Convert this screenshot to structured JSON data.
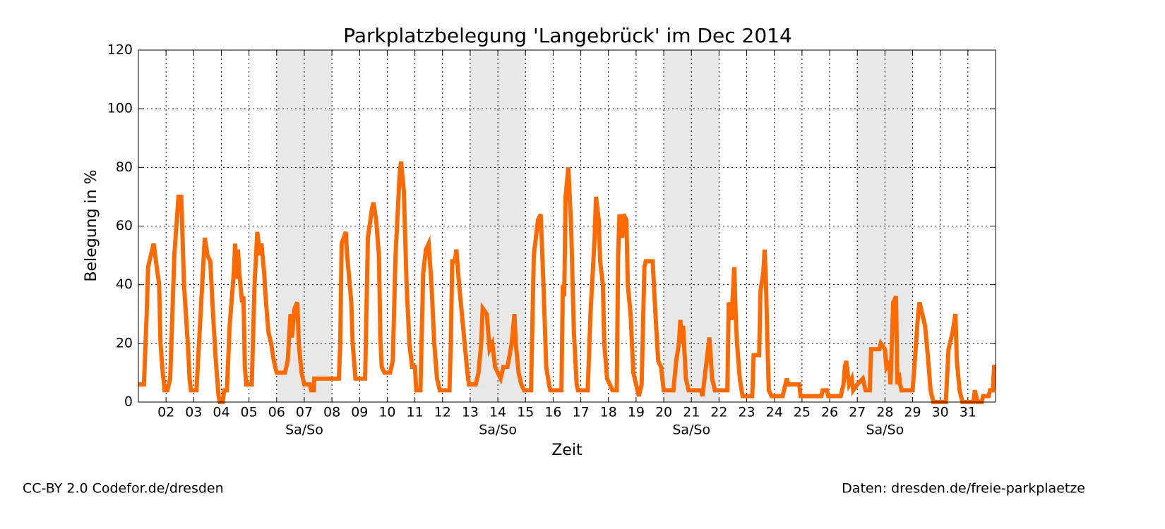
{
  "chart_data": {
    "type": "line",
    "title": "Parkplatzbelegung 'Langebrück' im Dec 2014",
    "xlabel": "Zeit",
    "ylabel": "Belegung in %",
    "footer_left": "CC-BY 2.0 Codefor.de/dresden",
    "footer_right": "Daten: dresden.de/freie-parkplaetze",
    "xlim": [
      1,
      32
    ],
    "ylim": [
      0,
      120
    ],
    "xticks": [
      {
        "value": 2,
        "label": "02"
      },
      {
        "value": 3,
        "label": "03"
      },
      {
        "value": 4,
        "label": "04"
      },
      {
        "value": 5,
        "label": "05"
      },
      {
        "value": 6,
        "label": "06"
      },
      {
        "value": 7,
        "label": "07"
      },
      {
        "value": 8,
        "label": "08"
      },
      {
        "value": 9,
        "label": "09"
      },
      {
        "value": 10,
        "label": "10"
      },
      {
        "value": 11,
        "label": "11"
      },
      {
        "value": 12,
        "label": "12"
      },
      {
        "value": 13,
        "label": "13"
      },
      {
        "value": 14,
        "label": "14"
      },
      {
        "value": 15,
        "label": "15"
      },
      {
        "value": 16,
        "label": "16"
      },
      {
        "value": 17,
        "label": "17"
      },
      {
        "value": 18,
        "label": "18"
      },
      {
        "value": 19,
        "label": "19"
      },
      {
        "value": 20,
        "label": "20"
      },
      {
        "value": 21,
        "label": "21"
      },
      {
        "value": 22,
        "label": "22"
      },
      {
        "value": 23,
        "label": "23"
      },
      {
        "value": 24,
        "label": "24"
      },
      {
        "value": 25,
        "label": "25"
      },
      {
        "value": 26,
        "label": "26"
      },
      {
        "value": 27,
        "label": "27"
      },
      {
        "value": 28,
        "label": "28"
      },
      {
        "value": 29,
        "label": "29"
      },
      {
        "value": 30,
        "label": "30"
      },
      {
        "value": 31,
        "label": "31"
      }
    ],
    "yticks": [
      0,
      20,
      40,
      60,
      80,
      100,
      120
    ],
    "grid": true,
    "weekends": [
      [
        6,
        8
      ],
      [
        13,
        15
      ],
      [
        20,
        22
      ],
      [
        27,
        29
      ]
    ],
    "weekend_label": "Sa/So",
    "weekend_color": "#e8e8e8",
    "x": [
      1.0,
      1.2,
      1.3,
      1.35,
      1.55,
      1.75,
      1.8,
      1.88,
      1.95,
      2.05,
      2.15,
      2.3,
      2.45,
      2.55,
      2.65,
      2.8,
      2.85,
      2.9,
      3.1,
      3.25,
      3.4,
      3.5,
      3.6,
      3.7,
      3.8,
      3.9,
      3.95,
      4.05,
      4.1,
      4.2,
      4.3,
      4.45,
      4.5,
      4.55,
      4.6,
      4.65,
      4.75,
      4.8,
      4.85,
      4.9,
      5.1,
      5.2,
      5.3,
      5.4,
      5.45,
      5.55,
      5.6,
      5.7,
      5.8,
      5.9,
      6.0,
      6.3,
      6.4,
      6.5,
      6.55,
      6.65,
      6.75,
      6.8,
      6.9,
      7.0,
      7.2,
      7.25,
      7.35,
      7.36,
      8.25,
      8.3,
      8.35,
      8.5,
      8.55,
      8.7,
      8.75,
      8.85,
      9.2,
      9.3,
      9.45,
      9.5,
      9.6,
      9.7,
      9.75,
      9.8,
      9.9,
      10.1,
      10.2,
      10.3,
      10.45,
      10.5,
      10.6,
      10.7,
      10.8,
      10.9,
      11.0,
      11.05,
      11.2,
      11.3,
      11.4,
      11.5,
      11.6,
      11.7,
      11.8,
      11.9,
      12.25,
      12.3,
      12.35,
      12.45,
      12.5,
      12.6,
      12.7,
      12.8,
      12.9,
      12.95,
      13.2,
      13.3,
      13.4,
      13.45,
      13.6,
      13.7,
      13.8,
      13.9,
      14.1,
      14.2,
      14.35,
      14.5,
      14.6,
      14.65,
      14.75,
      14.85,
      14.95,
      15.2,
      15.3,
      15.45,
      15.55,
      15.65,
      15.75,
      15.85,
      15.9,
      16.3,
      16.35,
      16.4,
      16.45,
      16.55,
      16.65,
      16.75,
      16.85,
      16.9,
      17.25,
      17.35,
      17.5,
      17.55,
      17.65,
      17.7,
      17.8,
      17.85,
      17.95,
      18.15,
      18.3,
      18.35,
      18.4,
      18.5,
      18.55,
      18.65,
      18.7,
      18.8,
      18.85,
      18.9,
      19.0,
      19.1,
      19.2,
      19.3,
      19.35,
      19.6,
      19.7,
      19.8,
      19.9,
      20.0,
      20.35,
      20.45,
      20.55,
      20.6,
      20.65,
      20.7,
      20.8,
      20.9,
      21.35,
      21.4,
      21.45,
      21.55,
      21.65,
      21.75,
      21.85,
      22.3,
      22.35,
      22.45,
      22.55,
      22.6,
      22.65,
      22.75,
      22.85,
      23.2,
      23.25,
      23.45,
      23.5,
      23.6,
      23.65,
      23.7,
      23.75,
      23.8,
      23.9,
      24.3,
      24.45,
      24.5,
      24.9,
      24.95,
      25.7,
      25.75,
      25.9,
      25.95,
      26.4,
      26.5,
      26.55,
      26.6,
      26.7,
      26.8,
      26.85,
      27.0,
      27.2,
      27.3,
      27.45,
      27.5,
      27.8,
      27.85,
      28.0,
      28.05,
      28.15,
      28.2,
      28.3,
      28.4,
      28.45,
      28.5,
      28.55,
      28.6,
      29.0,
      29.05,
      29.2,
      29.25,
      29.35,
      29.45,
      29.55,
      29.65,
      29.75,
      30.2,
      30.3,
      30.4,
      30.45,
      30.55,
      30.6,
      30.7,
      30.8,
      31.2,
      31.25,
      31.35,
      31.5,
      31.55,
      31.75,
      31.8,
      31.9,
      31.95,
      32.0
    ],
    "series": [
      {
        "color": "#ff6a00",
        "values": [
          6,
          6,
          30,
          46,
          54,
          40,
          20,
          10,
          4,
          4,
          8,
          50,
          70,
          70,
          40,
          18,
          8,
          4,
          4,
          30,
          56,
          50,
          48,
          30,
          14,
          2,
          0,
          0,
          4,
          4,
          26,
          44,
          54,
          42,
          52,
          44,
          34,
          36,
          12,
          6,
          6,
          40,
          58,
          50,
          54,
          44,
          36,
          24,
          20,
          14,
          10,
          10,
          14,
          30,
          22,
          32,
          34,
          20,
          10,
          6,
          6,
          4,
          4,
          8,
          8,
          20,
          54,
          58,
          50,
          34,
          20,
          8,
          8,
          56,
          66,
          68,
          62,
          50,
          22,
          12,
          10,
          10,
          14,
          50,
          78,
          82,
          72,
          40,
          20,
          12,
          12,
          4,
          4,
          44,
          52,
          54,
          40,
          20,
          8,
          4,
          4,
          20,
          48,
          48,
          52,
          40,
          30,
          20,
          10,
          6,
          6,
          10,
          20,
          32,
          30,
          18,
          20,
          12,
          8,
          12,
          12,
          20,
          30,
          20,
          10,
          6,
          4,
          4,
          50,
          62,
          64,
          40,
          12,
          6,
          4,
          4,
          40,
          36,
          70,
          80,
          60,
          24,
          6,
          4,
          4,
          30,
          56,
          70,
          62,
          48,
          40,
          20,
          8,
          4,
          4,
          50,
          64,
          56,
          64,
          62,
          40,
          30,
          20,
          10,
          6,
          2,
          6,
          46,
          48,
          48,
          30,
          14,
          12,
          4,
          4,
          14,
          20,
          28,
          20,
          26,
          8,
          4,
          4,
          2,
          6,
          14,
          22,
          8,
          4,
          4,
          34,
          28,
          46,
          30,
          20,
          8,
          2,
          2,
          16,
          16,
          38,
          44,
          52,
          40,
          20,
          4,
          2,
          2,
          8,
          6,
          6,
          2,
          2,
          4,
          4,
          2,
          2,
          6,
          12,
          14,
          6,
          8,
          4,
          6,
          8,
          4,
          4,
          18,
          18,
          20,
          18,
          12,
          14,
          6,
          34,
          36,
          6,
          10,
          6,
          4,
          4,
          10,
          30,
          34,
          30,
          26,
          16,
          4,
          0,
          0,
          18,
          22,
          24,
          30,
          14,
          4,
          0,
          0,
          4,
          0,
          0,
          2,
          2,
          4,
          4,
          12,
          12
        ]
      }
    ]
  }
}
